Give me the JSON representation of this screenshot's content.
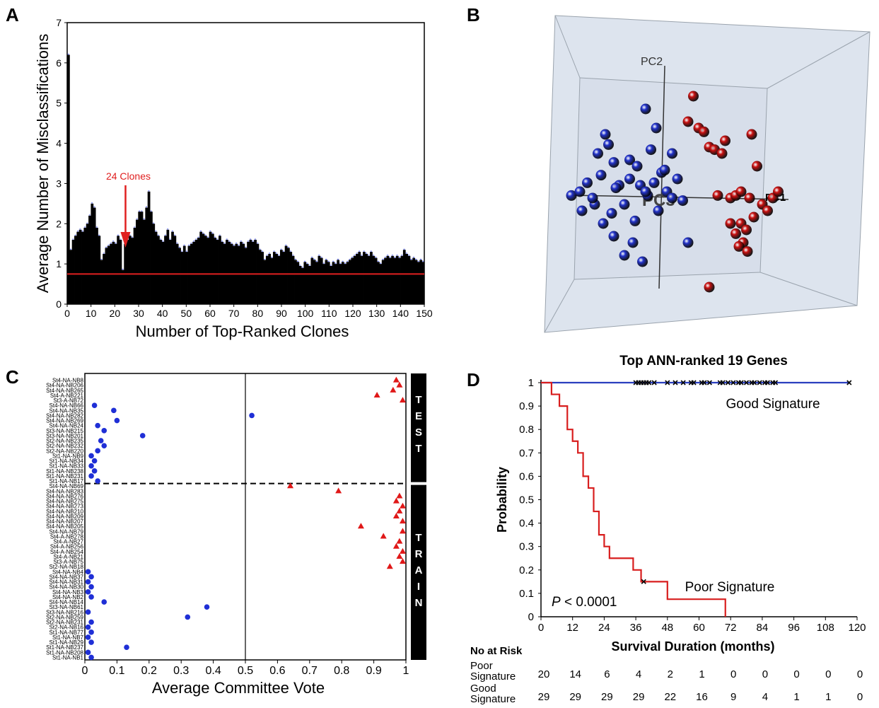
{
  "panels": {
    "A": "A",
    "B": "B",
    "C": "C",
    "D": "D"
  },
  "chart_data": [
    {
      "panel": "A",
      "type": "bar",
      "xlabel": "Number of Top-Ranked Clones",
      "ylabel": "Average Number of Misclassifications",
      "xlim": [
        0,
        150
      ],
      "ylim": [
        0,
        7
      ],
      "xticks": [
        0,
        10,
        20,
        30,
        40,
        50,
        60,
        70,
        80,
        90,
        100,
        110,
        120,
        130,
        140,
        150
      ],
      "yticks": [
        0,
        1,
        2,
        3,
        4,
        5,
        6,
        7
      ],
      "hline": 0.75,
      "annotation": {
        "text": "24 Clones",
        "x": 24
      },
      "values": [
        6.2,
        1.35,
        1.6,
        1.7,
        1.8,
        1.85,
        1.8,
        1.9,
        2.0,
        2.2,
        2.5,
        2.4,
        1.9,
        1.7,
        1.1,
        1.25,
        1.4,
        1.45,
        1.5,
        1.55,
        1.5,
        1.7,
        1.6,
        0.85,
        1.5,
        1.6,
        1.7,
        1.65,
        1.9,
        2.1,
        2.3,
        2.3,
        2.1,
        2.4,
        2.8,
        2.3,
        2.0,
        1.8,
        1.7,
        1.6,
        1.55,
        1.7,
        1.85,
        1.6,
        1.8,
        1.7,
        1.5,
        1.4,
        1.3,
        1.45,
        1.3,
        1.45,
        1.5,
        1.55,
        1.6,
        1.65,
        1.8,
        1.75,
        1.7,
        1.65,
        1.8,
        1.75,
        1.65,
        1.6,
        1.7,
        1.55,
        1.5,
        1.6,
        1.55,
        1.5,
        1.45,
        1.5,
        1.45,
        1.55,
        1.5,
        1.4,
        1.55,
        1.6,
        1.55,
        1.6,
        1.5,
        1.35,
        1.3,
        1.1,
        1.2,
        1.25,
        1.15,
        1.3,
        1.25,
        1.2,
        1.35,
        1.3,
        1.45,
        1.4,
        1.3,
        1.2,
        1.1,
        1.05,
        0.95,
        0.9,
        1.05,
        1.0,
        0.95,
        1.15,
        1.1,
        1.05,
        1.2,
        1.15,
        1.0,
        1.1,
        1.05,
        0.95,
        1.05,
        1.0,
        1.1,
        1.0,
        1.05,
        1.0,
        1.05,
        1.1,
        1.15,
        1.2,
        1.25,
        1.3,
        1.2,
        1.3,
        1.25,
        1.2,
        1.3,
        1.2,
        1.15,
        1.05,
        1.0,
        1.1,
        1.15,
        1.2,
        1.15,
        1.2,
        1.15,
        1.2,
        1.15,
        1.2,
        1.35,
        1.25,
        1.2,
        1.1,
        1.15,
        1.1,
        1.05,
        1.1,
        1.05
      ]
    },
    {
      "panel": "B",
      "type": "scatter",
      "axis_labels": [
        "PC1",
        "PC2",
        "PC3"
      ],
      "series": [
        {
          "color": "#2233cc",
          "x": [
            -1.0,
            -0.92,
            -0.85,
            -0.78,
            -0.9,
            -0.75,
            -0.68,
            -0.6,
            -0.55,
            -0.62,
            -0.7,
            -0.8,
            -0.72,
            -0.5,
            -0.45,
            -0.38,
            -0.35,
            -0.3,
            -0.4,
            -0.25,
            -0.2,
            -0.15,
            -0.1,
            -0.05,
            0.0,
            0.05,
            -0.42,
            -0.5,
            -0.33,
            -0.18,
            -0.28,
            -0.58,
            -0.65,
            -0.22,
            0.1,
            -0.05,
            -0.6,
            -0.45,
            -0.3,
            -0.12
          ],
          "y": [
            0.02,
            0.05,
            0.12,
            -0.05,
            -0.1,
            0.35,
            0.5,
            0.28,
            0.1,
            -0.12,
            -0.2,
            0.0,
            0.18,
            -0.05,
            0.3,
            0.25,
            0.1,
            0.7,
            -0.18,
            0.38,
            0.55,
            0.2,
            0.05,
            0.35,
            0.15,
            -0.02,
            -0.35,
            -0.45,
            -0.5,
            -0.1,
            0.02,
            0.08,
            0.42,
            0.12,
            -0.35,
            0.0,
            -0.3,
            0.15,
            0.05,
            0.22
          ]
        },
        {
          "color": "#cc1111",
          "x": [
            0.15,
            0.2,
            0.25,
            0.3,
            0.35,
            0.42,
            0.45,
            0.5,
            0.55,
            0.6,
            0.65,
            0.62,
            0.7,
            0.75,
            0.8,
            0.85,
            0.9,
            0.95,
            0.72,
            0.68,
            0.6,
            0.58,
            0.66,
            0.55,
            0.5,
            0.3,
            0.38,
            0.1
          ],
          "y": [
            0.8,
            0.55,
            0.52,
            0.4,
            0.38,
            0.35,
            0.45,
            0.0,
            0.02,
            -0.2,
            -0.25,
            -0.35,
            0.5,
            0.25,
            -0.05,
            -0.1,
            0.0,
            0.05,
            -0.15,
            0.0,
            0.05,
            -0.38,
            -0.42,
            -0.28,
            -0.2,
            -0.7,
            0.02,
            0.6
          ]
        }
      ]
    },
    {
      "panel": "C",
      "type": "scatter",
      "xlabel": "Average Committee Vote",
      "xlim": [
        0,
        1
      ],
      "xticks": [
        0,
        0.1,
        0.2,
        0.3,
        0.4,
        0.5,
        0.6,
        0.7,
        0.8,
        0.9,
        1
      ],
      "groups": [
        "TEST",
        "TRAIN"
      ],
      "rows": [
        {
          "label": "St4-NA-NB8",
          "group": "TEST",
          "class": "red",
          "value": 0.97
        },
        {
          "label": "St4-NA-NB206",
          "group": "TEST",
          "class": "red",
          "value": 0.98
        },
        {
          "label": "St4-NA-NB265",
          "group": "TEST",
          "class": "red",
          "value": 0.96
        },
        {
          "label": "St4-A-NB221",
          "group": "TEST",
          "class": "red",
          "value": 0.91
        },
        {
          "label": "St3-A-NB72",
          "group": "TEST",
          "class": "red",
          "value": 0.99
        },
        {
          "label": "St4-NA-NB66",
          "group": "TEST",
          "class": "blue",
          "value": 0.03
        },
        {
          "label": "St4-NA-NB35",
          "group": "TEST",
          "class": "blue",
          "value": 0.09
        },
        {
          "label": "St4-NA-NB282",
          "group": "TEST",
          "class": "blue",
          "value": 0.52
        },
        {
          "label": "St4-NA-NB269",
          "group": "TEST",
          "class": "blue",
          "value": 0.1
        },
        {
          "label": "St4-NA-NB24",
          "group": "TEST",
          "class": "blue",
          "value": 0.04
        },
        {
          "label": "St3-NA-NB215",
          "group": "TEST",
          "class": "blue",
          "value": 0.06
        },
        {
          "label": "St3-NA-NB201",
          "group": "TEST",
          "class": "blue",
          "value": 0.18
        },
        {
          "label": "St2-NA-NB235",
          "group": "TEST",
          "class": "blue",
          "value": 0.05
        },
        {
          "label": "St2-NA-NB232",
          "group": "TEST",
          "class": "blue",
          "value": 0.06
        },
        {
          "label": "St2-NA-NB220",
          "group": "TEST",
          "class": "blue",
          "value": 0.04
        },
        {
          "label": "St1-NA-NB9",
          "group": "TEST",
          "class": "blue",
          "value": 0.02
        },
        {
          "label": "St1-NA-NB34",
          "group": "TEST",
          "class": "blue",
          "value": 0.03
        },
        {
          "label": "St1-NA-NB33",
          "group": "TEST",
          "class": "blue",
          "value": 0.02
        },
        {
          "label": "St1-NA-NB238",
          "group": "TEST",
          "class": "blue",
          "value": 0.03
        },
        {
          "label": "St1-NA-NB231",
          "group": "TEST",
          "class": "blue",
          "value": 0.02
        },
        {
          "label": "St1-NA-NB17",
          "group": "TEST",
          "class": "blue",
          "value": 0.04
        },
        {
          "label": "St4-NA-NB69",
          "group": "TRAIN",
          "class": "red",
          "value": 0.64
        },
        {
          "label": "St4-NA-NB283",
          "group": "TRAIN",
          "class": "red",
          "value": 0.79
        },
        {
          "label": "St4-NA-NB276",
          "group": "TRAIN",
          "class": "red",
          "value": 0.98
        },
        {
          "label": "St4-NA-NB275",
          "group": "TRAIN",
          "class": "red",
          "value": 0.97
        },
        {
          "label": "St4-NA-NB273",
          "group": "TRAIN",
          "class": "red",
          "value": 0.99
        },
        {
          "label": "St4-NA-NB210",
          "group": "TRAIN",
          "class": "red",
          "value": 0.98
        },
        {
          "label": "St4-NA-NB209",
          "group": "TRAIN",
          "class": "red",
          "value": 0.97
        },
        {
          "label": "St4-NA-NB207",
          "group": "TRAIN",
          "class": "red",
          "value": 0.99
        },
        {
          "label": "St4-NA-NB205",
          "group": "TRAIN",
          "class": "red",
          "value": 0.86
        },
        {
          "label": "St4-NA-NB79",
          "group": "TRAIN",
          "class": "red",
          "value": 0.99
        },
        {
          "label": "St4-A-NB278",
          "group": "TRAIN",
          "class": "red",
          "value": 0.93
        },
        {
          "label": "St4-A-NB27",
          "group": "TRAIN",
          "class": "red",
          "value": 0.98
        },
        {
          "label": "St4-A-NB256",
          "group": "TRAIN",
          "class": "red",
          "value": 0.97
        },
        {
          "label": "St4-A-NB254",
          "group": "TRAIN",
          "class": "red",
          "value": 0.99
        },
        {
          "label": "St4-A-NB21",
          "group": "TRAIN",
          "class": "red",
          "value": 0.98
        },
        {
          "label": "St3-A-NB75",
          "group": "TRAIN",
          "class": "red",
          "value": 0.99
        },
        {
          "label": "St2-NA-NB18",
          "group": "TRAIN",
          "class": "red",
          "value": 0.95
        },
        {
          "label": "St4-NA-NB4",
          "group": "TRAIN",
          "class": "blue",
          "value": 0.01
        },
        {
          "label": "St4-NA-NB37",
          "group": "TRAIN",
          "class": "blue",
          "value": 0.02
        },
        {
          "label": "St4-NA-NB31",
          "group": "TRAIN",
          "class": "blue",
          "value": 0.01
        },
        {
          "label": "St4-NA-NB30",
          "group": "TRAIN",
          "class": "blue",
          "value": 0.02
        },
        {
          "label": "St4-NA-NB3",
          "group": "TRAIN",
          "class": "blue",
          "value": 0.01
        },
        {
          "label": "St4-NA-NB2",
          "group": "TRAIN",
          "class": "blue",
          "value": 0.02
        },
        {
          "label": "St4-NA-NB14",
          "group": "TRAIN",
          "class": "blue",
          "value": 0.06
        },
        {
          "label": "St3-NA-NB61",
          "group": "TRAIN",
          "class": "blue",
          "value": 0.38
        },
        {
          "label": "St3-NA-NB216",
          "group": "TRAIN",
          "class": "blue",
          "value": 0.01
        },
        {
          "label": "St2-NA-NB259",
          "group": "TRAIN",
          "class": "blue",
          "value": 0.32
        },
        {
          "label": "St2-NA-NB231",
          "group": "TRAIN",
          "class": "blue",
          "value": 0.02
        },
        {
          "label": "St2-NA-NB16",
          "group": "TRAIN",
          "class": "blue",
          "value": 0.01
        },
        {
          "label": "St1-NA-NB77",
          "group": "TRAIN",
          "class": "blue",
          "value": 0.02
        },
        {
          "label": "St1-NA-NB7",
          "group": "TRAIN",
          "class": "blue",
          "value": 0.01
        },
        {
          "label": "St1-NA-NB29",
          "group": "TRAIN",
          "class": "blue",
          "value": 0.02
        },
        {
          "label": "St1-NA-NB237",
          "group": "TRAIN",
          "class": "blue",
          "value": 0.13
        },
        {
          "label": "St1-NA-NB208",
          "group": "TRAIN",
          "class": "blue",
          "value": 0.01
        },
        {
          "label": "St1-NA-NB1",
          "group": "TRAIN",
          "class": "blue",
          "value": 0.02
        }
      ]
    },
    {
      "panel": "D",
      "type": "line",
      "title": "Top ANN-ranked 19 Genes",
      "xlabel": "Survival Duration (months)",
      "ylabel": "Probability",
      "xlim": [
        0,
        120
      ],
      "ylim": [
        0,
        1
      ],
      "xticks": [
        0,
        12,
        24,
        36,
        48,
        60,
        72,
        84,
        96,
        108,
        120
      ],
      "yticks": [
        0,
        0.1,
        0.2,
        0.3,
        0.4,
        0.5,
        0.6,
        0.7,
        0.8,
        0.9,
        1
      ],
      "pvalue_label": "P",
      "pvalue_text": " < 0.0001",
      "series": [
        {
          "name": "Good Signature",
          "color": "#2a3fbf",
          "x": [
            0,
            117
          ],
          "y": [
            1,
            1
          ],
          "censor_x": [
            36,
            37,
            38,
            39,
            40,
            41,
            43,
            48,
            51,
            54,
            57,
            58,
            61,
            62,
            64,
            68,
            69,
            71,
            73,
            75,
            76,
            78,
            80,
            81,
            83,
            85,
            86,
            88,
            89,
            117
          ]
        },
        {
          "name": "Poor Signature",
          "color": "#d81e1e",
          "x": [
            0,
            4,
            7,
            10,
            12,
            14,
            16,
            18,
            20,
            22,
            24,
            26,
            28,
            35,
            38,
            40,
            48,
            70
          ],
          "y": [
            1,
            0.95,
            0.9,
            0.8,
            0.75,
            0.7,
            0.6,
            0.55,
            0.45,
            0.35,
            0.3,
            0.25,
            0.25,
            0.2,
            0.15,
            0.15,
            0.075,
            0
          ],
          "censor_x": [
            39
          ]
        }
      ],
      "at_risk": {
        "title": "No at Risk",
        "rows": [
          {
            "label1": "Poor",
            "label2": "Signature",
            "values": [
              20,
              14,
              6,
              4,
              2,
              1,
              0,
              0,
              0,
              0,
              0
            ]
          },
          {
            "label1": "Good",
            "label2": "Signature",
            "values": [
              29,
              29,
              29,
              29,
              22,
              16,
              9,
              4,
              1,
              1,
              0
            ]
          }
        ]
      }
    }
  ]
}
